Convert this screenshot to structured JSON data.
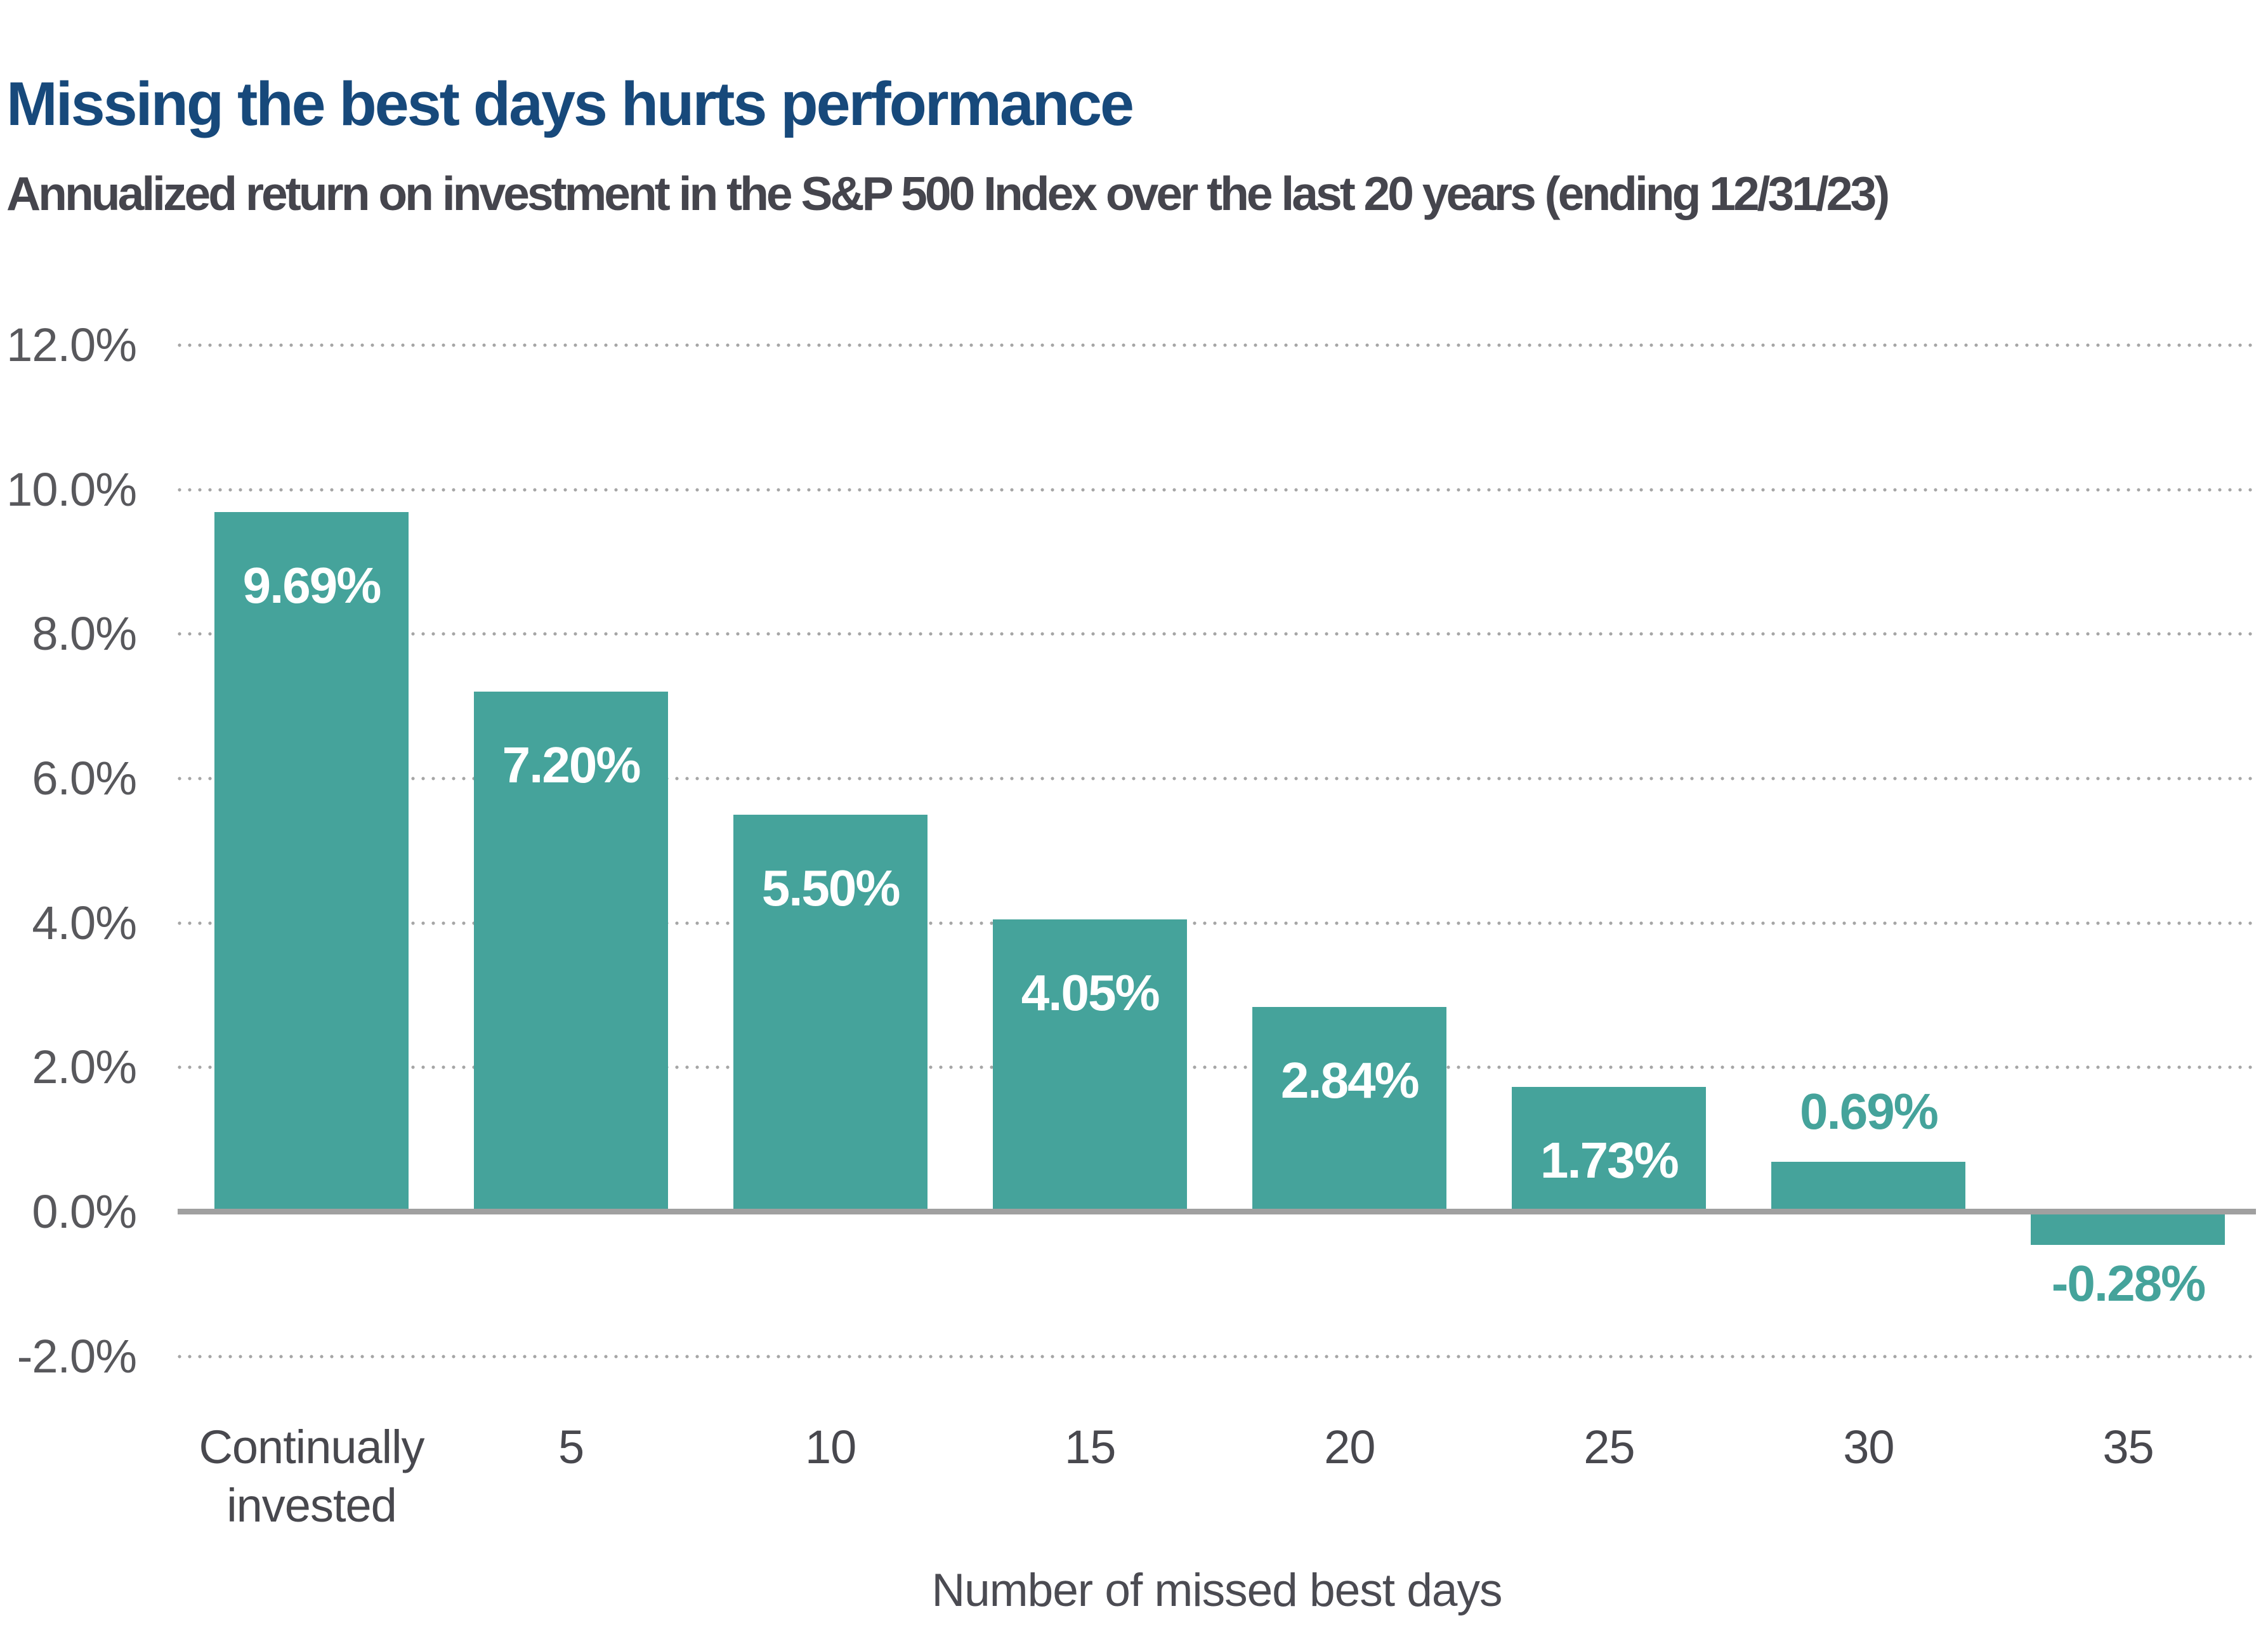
{
  "header": {
    "title": "Missing the best days hurts performance",
    "subtitle": "Annualized return on investment in the S&P 500 Index over the last 20 years (ending 12/31/23)"
  },
  "chart_data": {
    "type": "bar",
    "title": "Missing the best days hurts performance",
    "subtitle": "Annualized return on investment in the S&P 500 Index over the last 20 years (ending 12/31/23)",
    "categories": [
      "Continually invested",
      "5",
      "10",
      "15",
      "20",
      "25",
      "30",
      "35"
    ],
    "values": [
      9.69,
      7.2,
      5.5,
      4.05,
      2.84,
      1.73,
      0.69,
      -0.28
    ],
    "bar_labels": [
      "9.69%",
      "7.20%",
      "5.50%",
      "4.05%",
      "2.84%",
      "1.73%",
      "0.69%",
      "-0.28%"
    ],
    "bar_label_positions": [
      "inside",
      "inside",
      "inside",
      "inside",
      "inside",
      "inside",
      "above",
      "below"
    ],
    "xtick_labels": [
      "Continually\ninvested",
      "5",
      "10",
      "15",
      "20",
      "25",
      "30",
      "35"
    ],
    "xlabel": "Number of missed best days",
    "ylabel": "",
    "ylim": [
      -2,
      12
    ],
    "ytick_values": [
      12,
      10,
      8,
      6,
      4,
      2,
      0,
      -2
    ],
    "ytick_labels": [
      "12.0%",
      "10.0%",
      "8.0%",
      "6.0%",
      "4.0%",
      "2.0%",
      "0.0%",
      "-2.0%"
    ],
    "grid": "horizontal-dotted",
    "legend": "none",
    "colors": {
      "bar": "#45a39b",
      "label_inside": "#ffffff",
      "label_outside": "#45a39b",
      "title": "#17497b",
      "subtitle": "#45454d",
      "axis_line": "#a0a0a0",
      "grid_dots": "#a6a6a6",
      "ytick_text": "#58585c",
      "xtick_text": "#48484e",
      "axis_title_text": "#4b4b52"
    }
  }
}
